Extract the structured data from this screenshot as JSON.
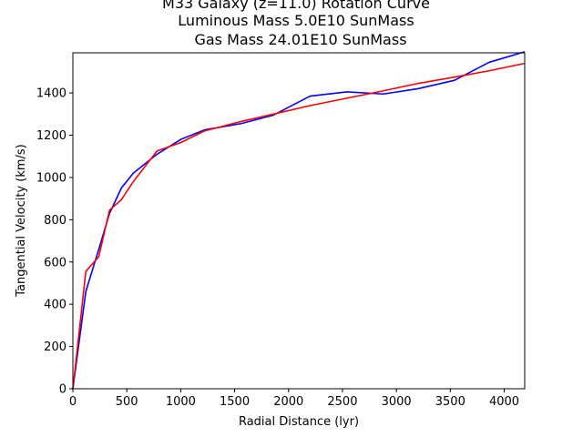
{
  "chart_data": {
    "type": "line",
    "title_lines": [
      "M33 Galaxy (z=11.0) Rotation Curve",
      "Luminous Mass 5.0E10 SunMass",
      "Gas Mass 24.01E10 SunMass"
    ],
    "xlabel": "Radial Distance (lyr)",
    "ylabel": "Tangential Velocity (km/s)",
    "xlim": [
      0,
      4190
    ],
    "ylim": [
      0,
      1590
    ],
    "xticks": [
      0,
      500,
      1000,
      1500,
      2000,
      2500,
      3000,
      3500,
      4000
    ],
    "yticks": [
      0,
      200,
      400,
      600,
      800,
      1000,
      1200,
      1400
    ],
    "grid": false,
    "series": [
      {
        "color": "#0000ff",
        "x": [
          0,
          120,
          240,
          340,
          450,
          560,
          780,
          1000,
          1220,
          1560,
          1860,
          2200,
          2540,
          2880,
          3200,
          3540,
          3860,
          4190
        ],
        "y": [
          0,
          460,
          660,
          830,
          950,
          1020,
          1110,
          1180,
          1225,
          1255,
          1295,
          1385,
          1405,
          1395,
          1420,
          1460,
          1545,
          1595
        ]
      },
      {
        "color": "#ff0000",
        "x": [
          0,
          120,
          240,
          340,
          450,
          560,
          780,
          1000,
          1220,
          1560,
          1860,
          2200,
          2540,
          2880,
          3200,
          3540,
          3860,
          4190
        ],
        "y": [
          0,
          555,
          625,
          845,
          895,
          980,
          1125,
          1165,
          1220,
          1265,
          1300,
          1340,
          1375,
          1410,
          1445,
          1475,
          1505,
          1540
        ]
      }
    ]
  }
}
